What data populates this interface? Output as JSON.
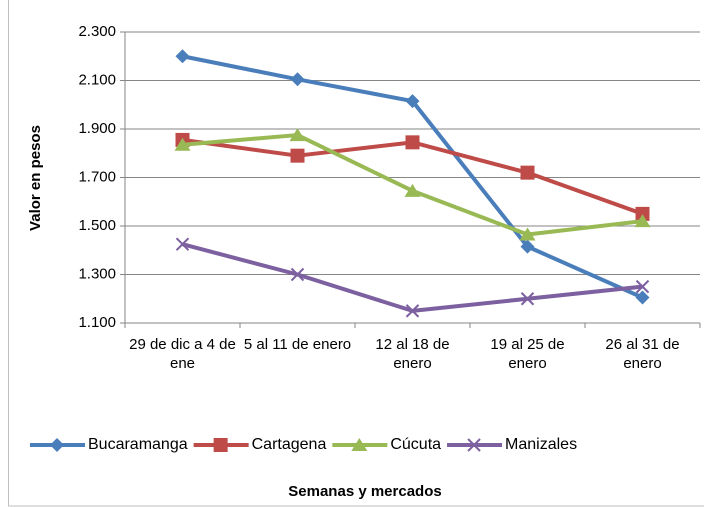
{
  "chart_data": {
    "type": "line",
    "y_label": "Valor en pesos",
    "x_label": "Semanas y mercados",
    "categories": [
      "29 de dic a 4 de ene",
      "5 al 11 de enero",
      "12 al 18 de enero",
      "19 al 25 de enero",
      "26 al 31 de enero"
    ],
    "series": [
      {
        "name": "Bucaramanga",
        "color": "#4a7ebb",
        "marker": "diamond",
        "values": [
          2200,
          2105,
          2015,
          1415,
          1205
        ]
      },
      {
        "name": "Cartagena",
        "color": "#be4b48",
        "marker": "square",
        "values": [
          1855,
          1790,
          1845,
          1720,
          1550
        ]
      },
      {
        "name": "Cúcuta",
        "color": "#98b954",
        "marker": "triangle",
        "values": [
          1835,
          1875,
          1645,
          1465,
          1520
        ]
      },
      {
        "name": "Manizales",
        "color": "#7d60a0",
        "marker": "x",
        "values": [
          1425,
          1300,
          1150,
          1200,
          1250
        ]
      }
    ],
    "ylim": [
      1100,
      2300
    ],
    "yticks": [
      {
        "value": 1100,
        "label": "1.100"
      },
      {
        "value": 1300,
        "label": "1.300"
      },
      {
        "value": 1500,
        "label": "1.500"
      },
      {
        "value": 1700,
        "label": "1.700"
      },
      {
        "value": 1900,
        "label": "1.900"
      },
      {
        "value": 2100,
        "label": "2.100"
      },
      {
        "value": 2300,
        "label": "2.300"
      }
    ],
    "grid": true,
    "legend": "bottom"
  }
}
